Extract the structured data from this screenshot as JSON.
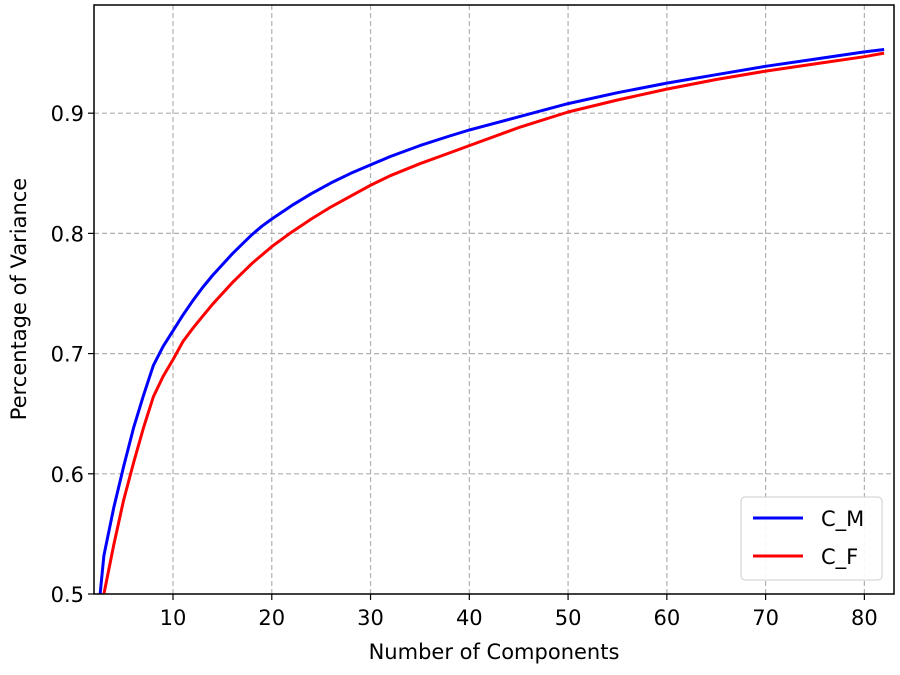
{
  "chart_data": {
    "type": "line",
    "title": "",
    "xlabel": "Number of Components",
    "ylabel": "Percentage of Variance",
    "xlim": [
      2,
      83
    ],
    "ylim": [
      0.5,
      0.99
    ],
    "xticks": [
      10,
      20,
      30,
      40,
      50,
      60,
      70,
      80
    ],
    "xtick_labels": [
      "10",
      "20",
      "30",
      "40",
      "50",
      "60",
      "70",
      "80"
    ],
    "yticks": [
      0.5,
      0.6,
      0.7,
      0.8,
      0.9
    ],
    "ytick_labels": [
      "0.5",
      "0.6",
      "0.7",
      "0.8",
      "0.9"
    ],
    "grid": true,
    "legend_position": "lower-right",
    "series": [
      {
        "name": "C_M",
        "color": "#0000ff",
        "x": [
          2,
          3,
          4,
          5,
          6,
          7,
          8,
          9,
          10,
          11,
          12,
          13,
          14,
          15,
          16,
          17,
          18,
          19,
          20,
          22,
          24,
          26,
          28,
          30,
          32,
          35,
          38,
          40,
          45,
          50,
          55,
          60,
          65,
          70,
          75,
          80,
          82
        ],
        "y": [
          0.448,
          0.532,
          0.572,
          0.606,
          0.638,
          0.665,
          0.69,
          0.706,
          0.719,
          0.732,
          0.744,
          0.755,
          0.765,
          0.774,
          0.783,
          0.791,
          0.799,
          0.806,
          0.812,
          0.823,
          0.833,
          0.842,
          0.85,
          0.857,
          0.864,
          0.873,
          0.881,
          0.886,
          0.897,
          0.908,
          0.917,
          0.925,
          0.932,
          0.939,
          0.945,
          0.951,
          0.953
        ]
      },
      {
        "name": "C_F",
        "color": "#ff0000",
        "x": [
          2,
          3,
          4,
          5,
          6,
          7,
          8,
          9,
          10,
          11,
          12,
          13,
          14,
          15,
          16,
          17,
          18,
          19,
          20,
          22,
          24,
          26,
          28,
          30,
          32,
          35,
          38,
          40,
          45,
          50,
          55,
          60,
          65,
          70,
          75,
          80,
          82
        ],
        "y": [
          0.426,
          0.5,
          0.541,
          0.578,
          0.609,
          0.638,
          0.664,
          0.681,
          0.695,
          0.71,
          0.721,
          0.731,
          0.741,
          0.75,
          0.759,
          0.767,
          0.775,
          0.782,
          0.789,
          0.801,
          0.812,
          0.822,
          0.831,
          0.84,
          0.848,
          0.858,
          0.867,
          0.873,
          0.888,
          0.901,
          0.911,
          0.92,
          0.928,
          0.935,
          0.941,
          0.947,
          0.95
        ]
      }
    ]
  }
}
